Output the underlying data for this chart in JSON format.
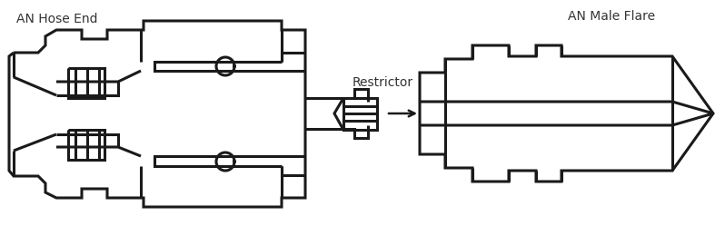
{
  "bg_color": "#ffffff",
  "line_color": "#1a1a1a",
  "line_width": 2.2,
  "label_an_hose_end": "AN Hose End",
  "label_an_male_flare": "AN Male Flare",
  "label_restrictor": "Restrictor",
  "font_size": 10,
  "fig_width": 7.98,
  "fig_height": 2.49
}
